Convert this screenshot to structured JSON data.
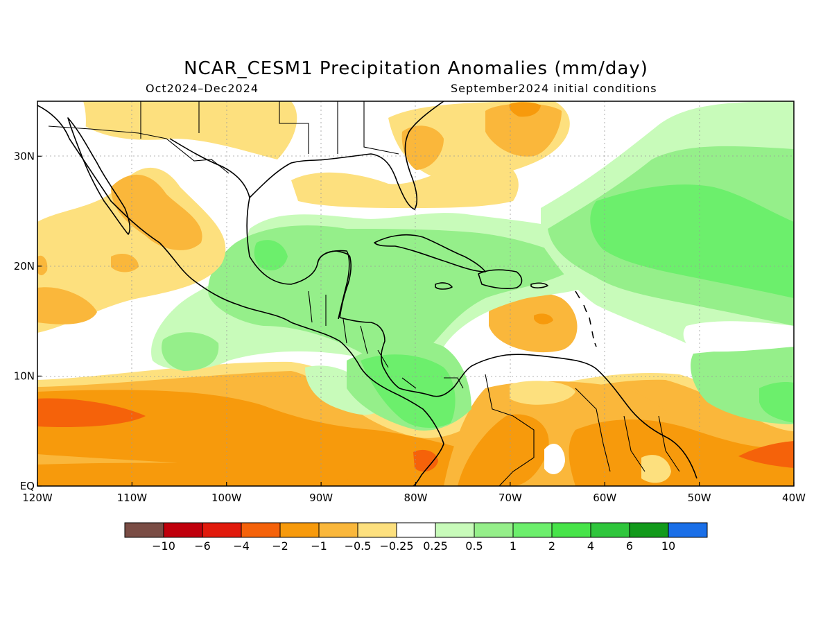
{
  "title": "NCAR_CESM1 Precipitation Anomalies (mm/day)",
  "period": "Oct2024–Dec2024",
  "init": "September2024 initial conditions",
  "axes": {
    "lon_labels": [
      "120W",
      "110W",
      "100W",
      "90W",
      "80W",
      "70W",
      "60W",
      "50W",
      "40W"
    ],
    "lat_labels": [
      "EQ",
      "10N",
      "20N",
      "30N"
    ],
    "lon_values": [
      -120,
      -110,
      -100,
      -90,
      -80,
      -70,
      -60,
      -50,
      -40
    ],
    "lat_values": [
      0,
      10,
      20,
      30
    ],
    "lon_range": [
      -120,
      -40
    ],
    "lat_range": [
      0,
      35
    ]
  },
  "colorbar": {
    "labels": [
      "−10",
      "−6",
      "−4",
      "−2",
      "−1",
      "−0.5",
      "−0.25",
      "0.25",
      "0.5",
      "1",
      "2",
      "4",
      "6",
      "10"
    ],
    "colors": [
      "#7a4d45",
      "#c0000c",
      "#e11a0c",
      "#f5620a",
      "#f79a0c",
      "#fab73b",
      "#fde07e",
      "#ffffff",
      "#c8fbba",
      "#95ef8a",
      "#6cef6c",
      "#47e449",
      "#2fc63c",
      "#129a1b",
      "#1a6fe8"
    ]
  },
  "palette": {
    "dry_strong": "#f5620a",
    "dry_med": "#f79a0c",
    "dry_light": "#fab73b",
    "dry_weak": "#fde07e",
    "wet_weak": "#c8fbba",
    "wet_light": "#95ef8a",
    "wet_med": "#6cef6c",
    "wet_strong": "#47e449"
  }
}
